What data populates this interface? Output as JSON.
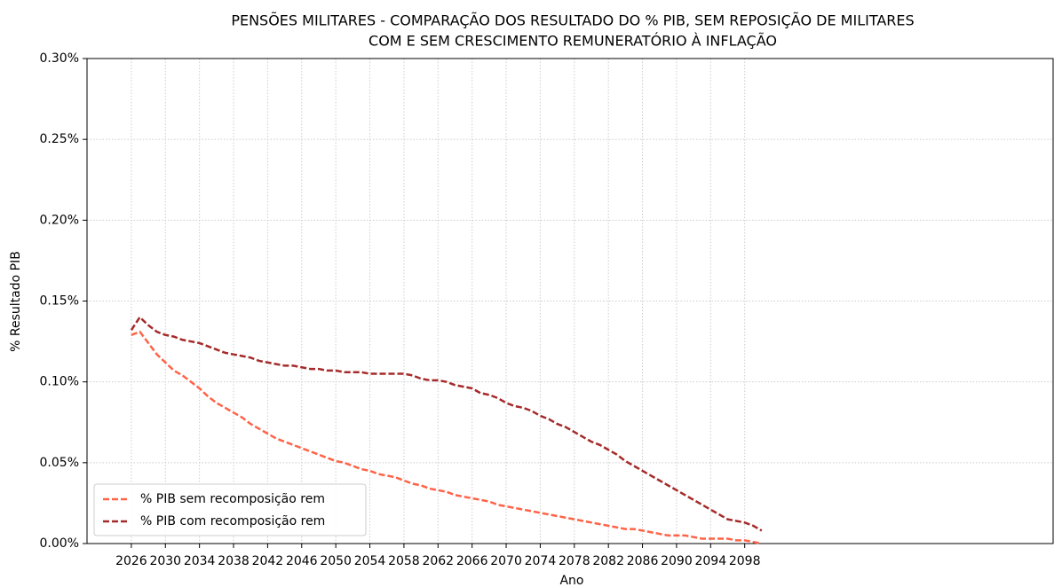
{
  "chart_data": {
    "type": "line",
    "title": [
      "PENSÕES MILITARES - COMPARAÇÃO DOS RESULTADO DO % PIB, SEM REPOSIÇÃO DE MILITARES",
      "COM E SEM CRESCIMENTO REMUNERATÓRIO À INFLAÇÃO"
    ],
    "xlabel": "Ano",
    "ylabel": "% Resultado PIB",
    "x": [
      2026,
      2027,
      2028,
      2029,
      2030,
      2031,
      2032,
      2033,
      2034,
      2035,
      2036,
      2037,
      2038,
      2039,
      2040,
      2041,
      2042,
      2043,
      2044,
      2045,
      2046,
      2047,
      2048,
      2049,
      2050,
      2051,
      2052,
      2053,
      2054,
      2055,
      2056,
      2057,
      2058,
      2059,
      2060,
      2061,
      2062,
      2063,
      2064,
      2065,
      2066,
      2067,
      2068,
      2069,
      2070,
      2071,
      2072,
      2073,
      2074,
      2075,
      2076,
      2077,
      2078,
      2079,
      2080,
      2081,
      2082,
      2083,
      2084,
      2085,
      2086,
      2087,
      2088,
      2089,
      2090,
      2091,
      2092,
      2093,
      2094,
      2095,
      2096,
      2097,
      2098,
      2099,
      2100
    ],
    "series": [
      {
        "name": "% PIB sem recomposição rem",
        "color": "#ff6347",
        "values": [
          0.129,
          0.131,
          0.124,
          0.117,
          0.112,
          0.107,
          0.104,
          0.1,
          0.096,
          0.091,
          0.087,
          0.084,
          0.081,
          0.078,
          0.074,
          0.071,
          0.068,
          0.065,
          0.063,
          0.061,
          0.059,
          0.057,
          0.055,
          0.053,
          0.051,
          0.05,
          0.048,
          0.046,
          0.045,
          0.043,
          0.042,
          0.041,
          0.039,
          0.037,
          0.036,
          0.034,
          0.033,
          0.032,
          0.03,
          0.029,
          0.028,
          0.027,
          0.026,
          0.024,
          0.023,
          0.022,
          0.021,
          0.02,
          0.019,
          0.018,
          0.017,
          0.016,
          0.015,
          0.014,
          0.013,
          0.012,
          0.011,
          0.01,
          0.009,
          0.009,
          0.008,
          0.007,
          0.006,
          0.005,
          0.005,
          0.005,
          0.004,
          0.003,
          0.003,
          0.003,
          0.003,
          0.002,
          0.002,
          0.001,
          0.0
        ]
      },
      {
        "name": "% PIB com recomposição rem",
        "color": "#a52a2a",
        "values": [
          0.132,
          0.14,
          0.135,
          0.131,
          0.129,
          0.128,
          0.126,
          0.125,
          0.124,
          0.122,
          0.12,
          0.118,
          0.117,
          0.116,
          0.115,
          0.113,
          0.112,
          0.111,
          0.11,
          0.11,
          0.109,
          0.108,
          0.108,
          0.107,
          0.107,
          0.106,
          0.106,
          0.106,
          0.105,
          0.105,
          0.105,
          0.105,
          0.105,
          0.104,
          0.102,
          0.101,
          0.101,
          0.1,
          0.098,
          0.097,
          0.096,
          0.093,
          0.092,
          0.09,
          0.087,
          0.085,
          0.084,
          0.082,
          0.079,
          0.077,
          0.074,
          0.072,
          0.069,
          0.066,
          0.063,
          0.061,
          0.058,
          0.055,
          0.051,
          0.048,
          0.045,
          0.042,
          0.039,
          0.036,
          0.033,
          0.03,
          0.027,
          0.024,
          0.021,
          0.018,
          0.015,
          0.014,
          0.013,
          0.011,
          0.008
        ]
      }
    ],
    "xlim": [
      2020.8,
      2134.2
    ],
    "xticks": [
      2026,
      2030,
      2034,
      2038,
      2042,
      2046,
      2050,
      2054,
      2058,
      2062,
      2066,
      2070,
      2074,
      2078,
      2082,
      2086,
      2090,
      2094,
      2098
    ],
    "ylim": [
      0,
      0.3
    ],
    "yticks": [
      {
        "value": 0,
        "label": "0.00%"
      },
      {
        "value": 0.05,
        "label": "0.05%"
      },
      {
        "value": 0.1,
        "label": "0.10%"
      },
      {
        "value": 0.15,
        "label": "0.15%"
      },
      {
        "value": 0.2,
        "label": "0.20%"
      },
      {
        "value": 0.25,
        "label": "0.25%"
      },
      {
        "value": 0.3,
        "label": "0.30%"
      }
    ],
    "grid": true,
    "legend": "lower left"
  }
}
